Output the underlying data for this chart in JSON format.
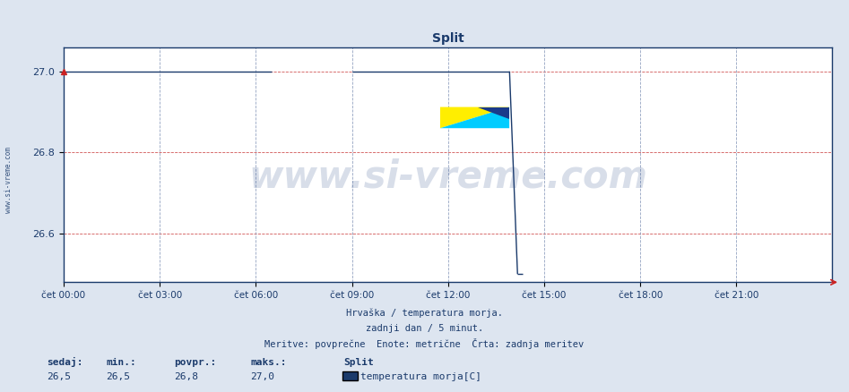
{
  "title": "Split",
  "bg_color": "#dde5f0",
  "plot_bg_color": "#ffffff",
  "line_color": "#1a3a6b",
  "line_width": 1.0,
  "axis_color": "#1a3a6b",
  "grid_h_color": "#cc4444",
  "grid_v_color": "#8899bb",
  "ylim_min": 26.48,
  "ylim_max": 27.06,
  "yticks": [
    26.6,
    26.8,
    27.0
  ],
  "xtick_labels": [
    "čet 00:00",
    "čet 03:00",
    "čet 06:00",
    "čet 09:00",
    "čet 12:00",
    "čet 15:00",
    "čet 18:00",
    "čet 21:00"
  ],
  "xtick_positions": [
    0,
    180,
    360,
    540,
    720,
    900,
    1080,
    1260
  ],
  "xlim_min": 0,
  "xlim_max": 1439,
  "footer_line1": "Hrvaška / temperatura morja.",
  "footer_line2": "zadnji dan / 5 minut.",
  "footer_line3": "Meritve: povprečne  Enote: metrične  Črta: zadnja meritev",
  "legend_station": "Split",
  "legend_label": "temperatura morja[C]",
  "legend_color": "#1a3a6b",
  "bottom_labels": [
    "sedaj:",
    "min.:",
    "povpr.:",
    "maks.:"
  ],
  "bottom_values": [
    "26,5",
    "26,5",
    "26,8",
    "27,0"
  ],
  "watermark": "www.si-vreme.com",
  "watermark_color": "#2a4a8a",
  "title_color": "#1a3a6b",
  "side_label": "www.si-vreme.com",
  "data_value_high": 27.0,
  "data_value_low": 26.5,
  "gap_start": 390,
  "gap_end": 540,
  "drop_point": 835,
  "drop_end": 850
}
